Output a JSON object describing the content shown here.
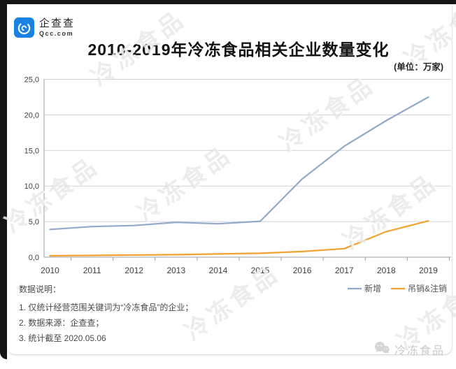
{
  "header": {
    "logo": {
      "name": "企查查",
      "domain": "Qcc.com"
    },
    "title": "2010-2019年冷冻食品相关企业数量变化",
    "unit": "(单位：万家)"
  },
  "chart_data": {
    "type": "line",
    "categories": [
      "2010",
      "2011",
      "2012",
      "2013",
      "2014",
      "2015",
      "2016",
      "2017",
      "2018",
      "2019"
    ],
    "series": [
      {
        "name": "新增",
        "color": "#93a9cb",
        "values": [
          3.9,
          4.3,
          4.45,
          4.9,
          4.7,
          5.05,
          11.0,
          15.6,
          19.2,
          22.5
        ]
      },
      {
        "name": "吊销&注销",
        "color": "#f0a232",
        "values": [
          0.2,
          0.25,
          0.3,
          0.35,
          0.45,
          0.55,
          0.8,
          1.2,
          3.6,
          5.1
        ]
      }
    ],
    "title": "2010-2019年冷冻食品相关企业数量变化",
    "xlabel": "",
    "ylabel": "",
    "ylim": [
      0,
      25
    ],
    "ytick_step": 5,
    "yticklabels": [
      "0,0",
      "5,0",
      "10,0",
      "15,0",
      "20,0",
      "25,0"
    ],
    "grid": true,
    "legend_position": "bottom-right"
  },
  "notes": {
    "heading": "数据说明：",
    "items": [
      "1. 仅统计经营范围关键词为“冷冻食品”的企业；",
      "2. 数据来源：企查查；",
      "3. 统计截至 2020.05.06"
    ]
  },
  "footer": {
    "account_name": "冷冻食品"
  },
  "watermark": {
    "text": "冷冻食品"
  },
  "colors": {
    "series_new": "#93a9cb",
    "series_revoked": "#f0a232",
    "logo_blue": "#1a82e2",
    "frame_black": "#151515",
    "gridline": "#cfd2d6"
  }
}
